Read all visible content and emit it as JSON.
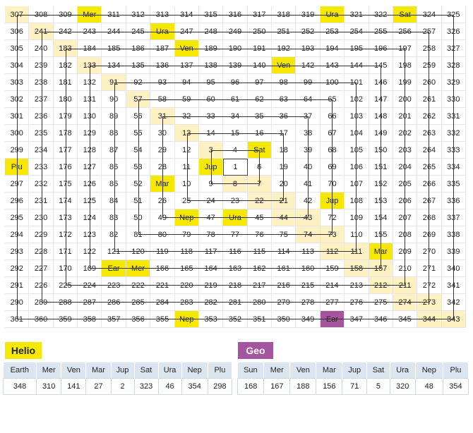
{
  "grid": {
    "rows": [
      [
        "307",
        "308",
        "309",
        "Mer",
        "311",
        "312",
        "313",
        "314",
        "315",
        "316",
        "317",
        "318",
        "319",
        "Ura",
        "321",
        "322",
        "Sat",
        "324",
        "325"
      ],
      [
        "306",
        "241",
        "242",
        "243",
        "244",
        "245",
        "Ura",
        "247",
        "248",
        "249",
        "250",
        "251",
        "252",
        "253",
        "254",
        "255",
        "256",
        "257",
        "326"
      ],
      [
        "305",
        "240",
        "183",
        "184",
        "185",
        "186",
        "187",
        "Ven",
        "189",
        "190",
        "191",
        "192",
        "193",
        "194",
        "195",
        "196",
        "197",
        "258",
        "327"
      ],
      [
        "304",
        "239",
        "182",
        "133",
        "134",
        "135",
        "136",
        "137",
        "138",
        "139",
        "140",
        "Ven",
        "142",
        "143",
        "144",
        "145",
        "198",
        "259",
        "328"
      ],
      [
        "303",
        "238",
        "181",
        "132",
        "91",
        "92",
        "93",
        "94",
        "95",
        "96",
        "97",
        "98",
        "99",
        "100",
        "101",
        "146",
        "199",
        "260",
        "329"
      ],
      [
        "302",
        "237",
        "180",
        "131",
        "90",
        "57",
        "58",
        "59",
        "60",
        "61",
        "62",
        "63",
        "64",
        "65",
        "102",
        "147",
        "200",
        "261",
        "330"
      ],
      [
        "301",
        "236",
        "179",
        "130",
        "89",
        "56",
        "31",
        "32",
        "33",
        "34",
        "35",
        "36",
        "37",
        "66",
        "103",
        "148",
        "201",
        "262",
        "331"
      ],
      [
        "300",
        "235",
        "178",
        "129",
        "88",
        "55",
        "30",
        "13",
        "14",
        "15",
        "16",
        "17",
        "38",
        "67",
        "104",
        "149",
        "202",
        "263",
        "332"
      ],
      [
        "299",
        "234",
        "177",
        "128",
        "87",
        "54",
        "29",
        "12",
        "3",
        "4",
        "Sat",
        "18",
        "39",
        "68",
        "105",
        "150",
        "203",
        "264",
        "333"
      ],
      [
        "Plu",
        "233",
        "176",
        "127",
        "86",
        "53",
        "28",
        "11",
        "Jup",
        "1",
        "6",
        "19",
        "40",
        "69",
        "106",
        "151",
        "204",
        "265",
        "334"
      ],
      [
        "297",
        "232",
        "175",
        "126",
        "85",
        "52",
        "Mar",
        "10",
        "9",
        "8",
        "7",
        "20",
        "41",
        "70",
        "107",
        "152",
        "205",
        "266",
        "335"
      ],
      [
        "296",
        "231",
        "174",
        "125",
        "84",
        "51",
        "26",
        "25",
        "24",
        "23",
        "22",
        "21",
        "42",
        "Jup",
        "108",
        "153",
        "206",
        "267",
        "336"
      ],
      [
        "295",
        "230",
        "173",
        "124",
        "83",
        "50",
        "49",
        "Nep",
        "47",
        "Ura",
        "45",
        "44",
        "43",
        "72",
        "109",
        "154",
        "207",
        "268",
        "337"
      ],
      [
        "294",
        "229",
        "172",
        "123",
        "82",
        "81",
        "80",
        "79",
        "78",
        "77",
        "76",
        "75",
        "74",
        "73",
        "110",
        "155",
        "208",
        "269",
        "338"
      ],
      [
        "293",
        "228",
        "171",
        "122",
        "121",
        "120",
        "119",
        "118",
        "117",
        "116",
        "115",
        "114",
        "113",
        "112",
        "111",
        "Mar",
        "209",
        "270",
        "339"
      ],
      [
        "292",
        "227",
        "170",
        "169",
        "Ear",
        "Mer",
        "166",
        "165",
        "164",
        "163",
        "162",
        "161",
        "160",
        "159",
        "158",
        "157",
        "210",
        "271",
        "340"
      ],
      [
        "291",
        "226",
        "225",
        "224",
        "223",
        "222",
        "221",
        "220",
        "219",
        "218",
        "217",
        "216",
        "215",
        "214",
        "213",
        "212",
        "211",
        "272",
        "341"
      ],
      [
        "290",
        "289",
        "288",
        "287",
        "286",
        "285",
        "284",
        "283",
        "282",
        "281",
        "280",
        "279",
        "278",
        "277",
        "276",
        "275",
        "274",
        "273",
        "342"
      ],
      [
        "361",
        "360",
        "359",
        "358",
        "357",
        "356",
        "355",
        "Nep",
        "353",
        "352",
        "351",
        "350",
        "349",
        "Ear",
        "347",
        "346",
        "345",
        "344",
        "343"
      ]
    ],
    "highlight_colors": {
      "square": "#fdf0c2",
      "helio": "#f6e800",
      "geo": "#a5559e"
    }
  },
  "helio": {
    "label": "Helio",
    "headers": [
      "Earth",
      "Mer",
      "Ven",
      "Mar",
      "Jup",
      "Sat",
      "Ura",
      "Nep",
      "Plu"
    ],
    "values": [
      "348",
      "310",
      "141",
      "27",
      "2",
      "323",
      "46",
      "354",
      "298"
    ]
  },
  "geo": {
    "label": "Geo",
    "headers": [
      "Sun",
      "Mer",
      "Ven",
      "Mar",
      "Jup",
      "Sat",
      "Ura",
      "Nep",
      "Plu"
    ],
    "values": [
      "168",
      "167",
      "188",
      "156",
      "71",
      "5",
      "320",
      "48",
      "354"
    ]
  }
}
